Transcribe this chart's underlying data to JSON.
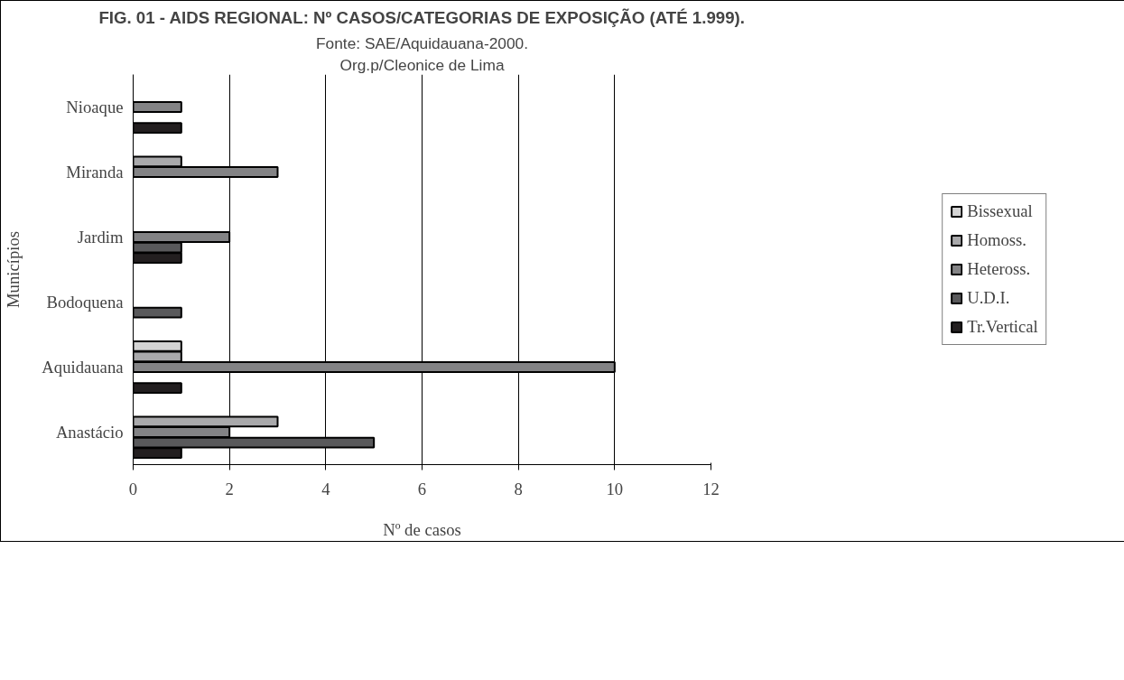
{
  "chart_data": {
    "type": "bar",
    "orientation": "horizontal",
    "title": "FIG. 01 - AIDS REGIONAL: Nº CASOS/CATEGORIAS DE EXPOSIÇÃO (ATÉ 1.999).",
    "annotations": [
      "Fonte: SAE/Aquidauana-2000.",
      "Org.p/Cleonice de Lima"
    ],
    "xlabel": "Nº de casos",
    "ylabel": "Municípios",
    "categories": [
      "Nioaque",
      "Miranda",
      "Jardim",
      "Bodoquena",
      "Aquidauana",
      "Anastácio"
    ],
    "series": [
      {
        "name": "Bissexual",
        "color": "#d4d4d4",
        "values": [
          0,
          0,
          0,
          0,
          1,
          0
        ]
      },
      {
        "name": "Homoss.",
        "color": "#a9a9ab",
        "values": [
          0,
          1,
          0,
          0,
          1,
          3
        ]
      },
      {
        "name": "Heteross.",
        "color": "#838385",
        "values": [
          1,
          3,
          2,
          0,
          10,
          2
        ]
      },
      {
        "name": "U.D.I.",
        "color": "#59595b",
        "values": [
          0,
          0,
          1,
          1,
          0,
          5
        ]
      },
      {
        "name": "Tr.Vertical",
        "color": "#231f20",
        "values": [
          1,
          0,
          1,
          0,
          1,
          1
        ]
      }
    ],
    "xlim": [
      0,
      12
    ],
    "xticks": [
      0,
      2,
      4,
      6,
      8,
      10,
      12
    ],
    "grid": "x",
    "legend": "right"
  }
}
